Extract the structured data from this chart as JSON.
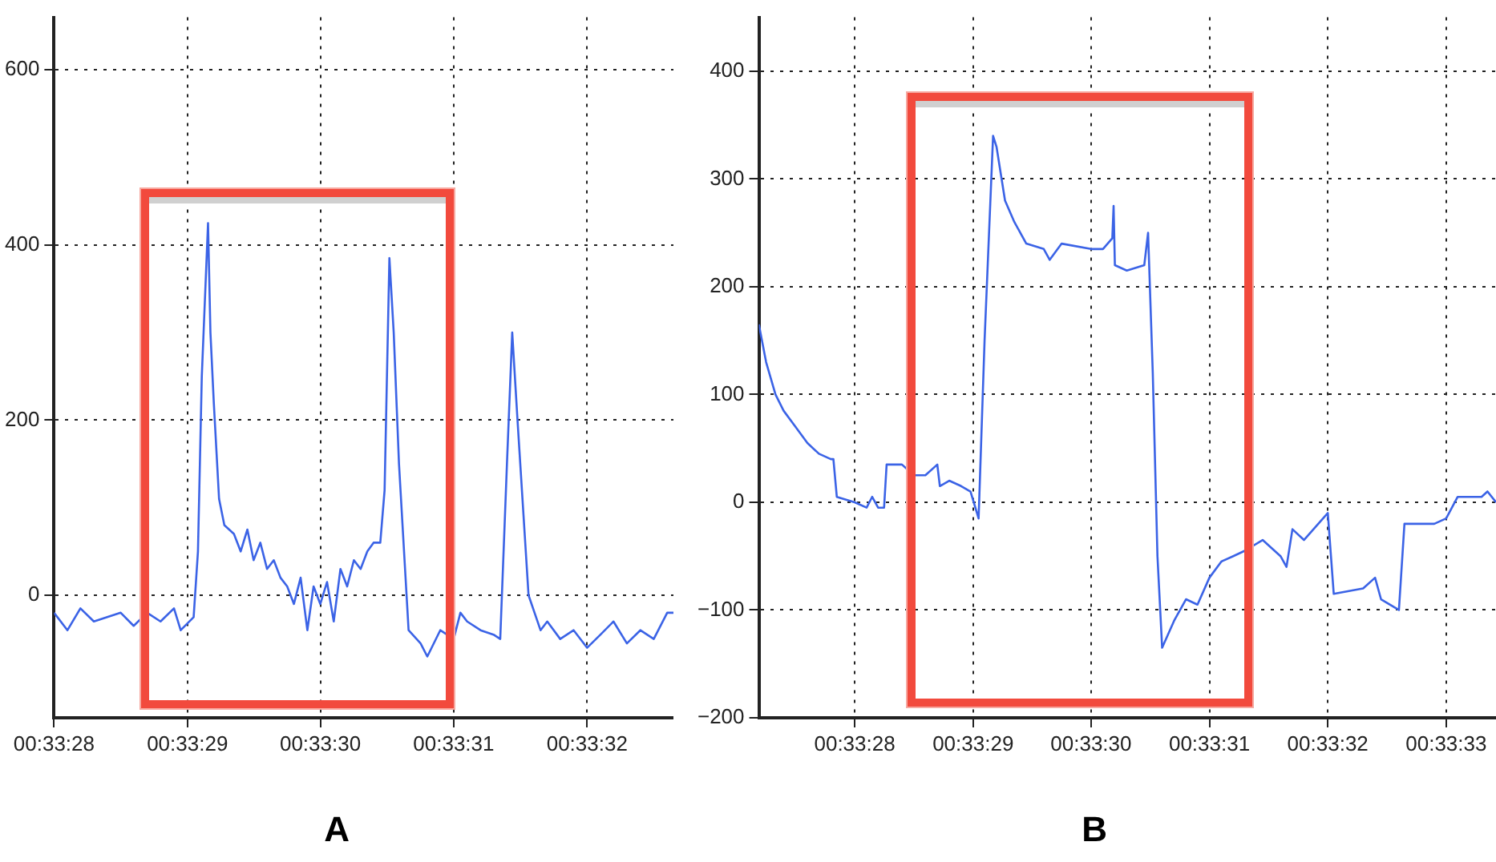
{
  "chart_data": [
    {
      "type": "line",
      "title": "A",
      "color": "#3b63e6",
      "grid": true,
      "legend": false,
      "marker": "none",
      "line_style": "solid",
      "xlim": [
        0.557778,
        0.559069
      ],
      "xticks": [
        {
          "value": 0.557778,
          "label": "00:33:28"
        },
        {
          "value": 0.558056,
          "label": "00:33:29"
        },
        {
          "value": 0.558333,
          "label": "00:33:30"
        },
        {
          "value": 0.558611,
          "label": "00:33:31"
        },
        {
          "value": 0.558889,
          "label": "00:33:32"
        }
      ],
      "ylim": [
        -140,
        660
      ],
      "yticks": [
        0,
        200,
        400,
        600
      ],
      "x": [
        0.557778,
        0.557806,
        0.557833,
        0.557861,
        0.557889,
        0.557917,
        0.557944,
        0.557972,
        0.558,
        0.558028,
        0.558042,
        0.558069,
        0.558078,
        0.558086,
        0.558099,
        0.558104,
        0.558111,
        0.558122,
        0.558133,
        0.558153,
        0.558167,
        0.558181,
        0.558194,
        0.558208,
        0.558222,
        0.558236,
        0.55825,
        0.558264,
        0.558278,
        0.558292,
        0.558306,
        0.558319,
        0.558333,
        0.558347,
        0.558361,
        0.558375,
        0.558389,
        0.558403,
        0.558417,
        0.558431,
        0.558444,
        0.558458,
        0.558467,
        0.558477,
        0.558486,
        0.558497,
        0.558517,
        0.558542,
        0.558556,
        0.558583,
        0.558611,
        0.558625,
        0.558639,
        0.558667,
        0.558694,
        0.558708,
        0.558722,
        0.558733,
        0.558744,
        0.558767,
        0.558792,
        0.558806,
        0.558833,
        0.558861,
        0.558889,
        0.558917,
        0.558944,
        0.558972,
        0.559,
        0.559028,
        0.559056,
        0.559069
      ],
      "values": [
        -20,
        -40,
        -15,
        -30,
        -25,
        -20,
        -35,
        -20,
        -30,
        -15,
        -40,
        -25,
        50,
        250,
        425,
        300,
        220,
        110,
        80,
        70,
        50,
        75,
        40,
        60,
        30,
        40,
        20,
        10,
        -10,
        20,
        -40,
        10,
        -10,
        15,
        -30,
        30,
        10,
        40,
        30,
        50,
        60,
        60,
        120,
        385,
        300,
        150,
        -40,
        -55,
        -70,
        -40,
        -50,
        -20,
        -30,
        -40,
        -45,
        -50,
        150,
        300,
        200,
        0,
        -40,
        -30,
        -50,
        -40,
        -60,
        -45,
        -30,
        -55,
        -40,
        -50,
        -20,
        -20
      ]
    },
    {
      "type": "line",
      "title": "B",
      "color": "#3b63e6",
      "grid": true,
      "legend": false,
      "marker": "none",
      "line_style": "solid",
      "xlim": [
        0.557553,
        0.559284
      ],
      "xticks": [
        {
          "value": 0.557778,
          "label": "00:33:28"
        },
        {
          "value": 0.558056,
          "label": "00:33:29"
        },
        {
          "value": 0.558333,
          "label": "00:33:30"
        },
        {
          "value": 0.558611,
          "label": "00:33:31"
        },
        {
          "value": 0.558889,
          "label": "00:33:32"
        },
        {
          "value": 0.559167,
          "label": "00:33:33"
        }
      ],
      "ylim": [
        -200,
        450
      ],
      "yticks": [
        {
          "value": -200,
          "label": "−200"
        },
        {
          "value": -100,
          "label": "−100"
        },
        0,
        100,
        200,
        300,
        400
      ],
      "x": [
        0.557553,
        0.55757,
        0.557592,
        0.557611,
        0.557639,
        0.557667,
        0.557694,
        0.557722,
        0.557728,
        0.557736,
        0.557778,
        0.557806,
        0.557819,
        0.557833,
        0.557847,
        0.557853,
        0.557889,
        0.557917,
        0.557944,
        0.557972,
        0.557978,
        0.558,
        0.558028,
        0.55805,
        0.558069,
        0.558083,
        0.558103,
        0.558111,
        0.558131,
        0.558153,
        0.558181,
        0.558222,
        0.558236,
        0.558264,
        0.558333,
        0.558361,
        0.558383,
        0.558386,
        0.558389,
        0.558417,
        0.558458,
        0.558467,
        0.558478,
        0.558489,
        0.5585,
        0.558528,
        0.558556,
        0.558583,
        0.558611,
        0.558639,
        0.558667,
        0.558694,
        0.558736,
        0.558778,
        0.558792,
        0.558806,
        0.558833,
        0.558889,
        0.558903,
        0.558972,
        0.559,
        0.559014,
        0.559056,
        0.559069,
        0.559139,
        0.559167,
        0.559194,
        0.55925,
        0.559264,
        0.559284
      ],
      "values": [
        165,
        130,
        100,
        85,
        70,
        55,
        45,
        40,
        40,
        5,
        0,
        -5,
        5,
        -5,
        -5,
        35,
        35,
        25,
        25,
        35,
        15,
        20,
        15,
        10,
        -15,
        150,
        340,
        330,
        280,
        260,
        240,
        235,
        225,
        240,
        235,
        235,
        245,
        275,
        220,
        215,
        220,
        250,
        120,
        -50,
        -135,
        -110,
        -90,
        -95,
        -70,
        -55,
        -50,
        -45,
        -35,
        -50,
        -60,
        -25,
        -35,
        -10,
        -85,
        -80,
        -70,
        -90,
        -100,
        -20,
        -20,
        -15,
        5,
        5,
        10,
        0
      ]
    }
  ]
}
